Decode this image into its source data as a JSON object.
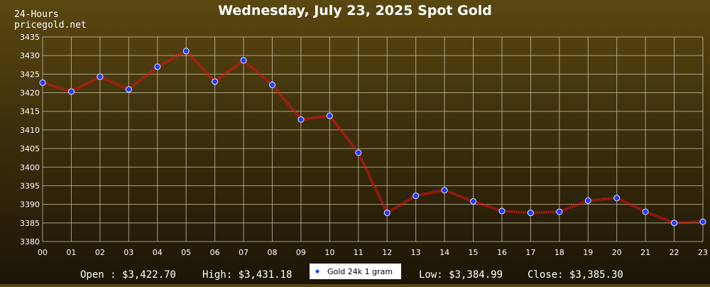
{
  "header": {
    "corner_line1": "24-Hours",
    "corner_line2": "pricegold.net",
    "title": "Wednesday, July 23, 2025 Spot Gold"
  },
  "footer": {
    "open": "Open : $3,422.70",
    "high": "High: $3,431.18",
    "low": "Low: $3,384.99",
    "close": "Close: $3,385.30"
  },
  "legend": {
    "label": "Gold 24k 1 gram",
    "marker_icon": "blue-dot-icon"
  },
  "colors": {
    "background_top": "#5a4710",
    "background_bottom": "#1c1506",
    "line": "#ee1111",
    "marker": "#1f3dff",
    "grid": "#cfc7b0",
    "text": "#ffffff"
  },
  "chart_data": {
    "type": "line",
    "title": "Wednesday, July 23, 2025 Spot Gold",
    "xlabel": "",
    "ylabel": "",
    "x": [
      "00",
      "01",
      "02",
      "03",
      "04",
      "05",
      "06",
      "07",
      "08",
      "09",
      "10",
      "11",
      "12",
      "13",
      "14",
      "15",
      "16",
      "17",
      "18",
      "19",
      "20",
      "21",
      "22",
      "23"
    ],
    "ylim": [
      3380,
      3435
    ],
    "yticks": [
      3380,
      3385,
      3390,
      3395,
      3400,
      3405,
      3410,
      3415,
      3420,
      3425,
      3430,
      3435
    ],
    "grid": true,
    "legend_position": "bottom-center",
    "series": [
      {
        "name": "Gold 24k 1 gram",
        "values": [
          3422.7,
          3420.3,
          3424.3,
          3420.9,
          3427.0,
          3431.2,
          3423.0,
          3428.7,
          3422.1,
          3412.8,
          3413.8,
          3403.9,
          3387.7,
          3392.3,
          3393.8,
          3390.8,
          3388.2,
          3387.7,
          3388.0,
          3391.0,
          3391.7,
          3388.0,
          3385.0,
          3385.3
        ]
      }
    ]
  }
}
